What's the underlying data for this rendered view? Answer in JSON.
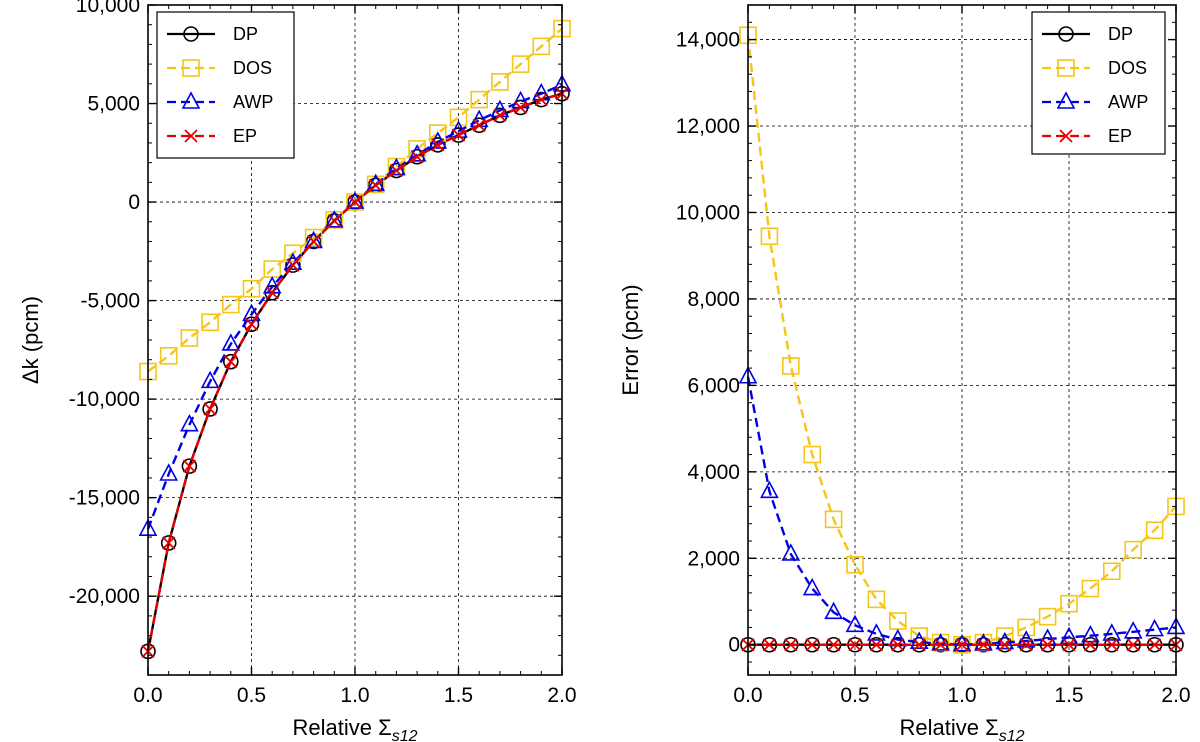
{
  "chart_data": [
    {
      "type": "line",
      "id": "left",
      "title": "",
      "xlabel_main": "Relative Σ",
      "xlabel_sub": "s12",
      "ylabel": "Δk (pcm)",
      "xlim": [
        0,
        2
      ],
      "ylim": [
        -24000,
        10000
      ],
      "xticks": [
        0,
        0.5,
        1,
        1.5,
        2
      ],
      "xtick_labels": [
        "0.0",
        "0.5",
        "1.0",
        "1.5",
        "2.0"
      ],
      "yticks": [
        -20000,
        -15000,
        -10000,
        -5000,
        0,
        5000,
        10000
      ],
      "ytick_labels": [
        "-20,000",
        "-15,000",
        "-10,000",
        "-5,000",
        "0",
        "5,000",
        "10,000"
      ],
      "legend_position": "top-left",
      "x": [
        0,
        0.1,
        0.2,
        0.3,
        0.4,
        0.5,
        0.6,
        0.7,
        0.8,
        0.9,
        1.0,
        1.1,
        1.2,
        1.3,
        1.4,
        1.5,
        1.6,
        1.7,
        1.8,
        1.9,
        2.0
      ],
      "series": [
        {
          "name": "DP",
          "color": "#000000",
          "marker": "circle",
          "dash": "solid",
          "values": [
            -22800,
            -17300,
            -13400,
            -10500,
            -8100,
            -6200,
            -4600,
            -3200,
            -2000,
            -950,
            0,
            850,
            1600,
            2300,
            2900,
            3400,
            3900,
            4400,
            4800,
            5200,
            5500
          ]
        },
        {
          "name": "DOS",
          "color": "#f5c518",
          "marker": "square",
          "dash": "dashed",
          "values": [
            -8600,
            -7800,
            -6900,
            -6100,
            -5200,
            -4400,
            -3400,
            -2600,
            -1800,
            -900,
            0,
            900,
            1800,
            2700,
            3500,
            4300,
            5200,
            6100,
            7000,
            7900,
            8800
          ]
        },
        {
          "name": "AWP",
          "color": "#0000e6",
          "marker": "triangle",
          "dash": "dashed",
          "values": [
            -16600,
            -13800,
            -11300,
            -9100,
            -7200,
            -5700,
            -4300,
            -3100,
            -2000,
            -950,
            0,
            900,
            1700,
            2400,
            3050,
            3600,
            4150,
            4650,
            5100,
            5500,
            5950
          ]
        },
        {
          "name": "EP",
          "color": "#e60000",
          "marker": "x",
          "dash": "dashed",
          "values": [
            -22800,
            -17300,
            -13400,
            -10500,
            -8100,
            -6200,
            -4600,
            -3200,
            -2000,
            -950,
            0,
            850,
            1600,
            2300,
            2900,
            3400,
            3900,
            4400,
            4800,
            5200,
            5500
          ]
        }
      ]
    },
    {
      "type": "line",
      "id": "right",
      "title": "",
      "xlabel_main": "Relative Σ",
      "xlabel_sub": "s12",
      "ylabel": "Error (pcm)",
      "xlim": [
        0,
        2
      ],
      "ylim": [
        -700,
        14800
      ],
      "xticks": [
        0,
        0.5,
        1,
        1.5,
        2
      ],
      "xtick_labels": [
        "0.0",
        "0.5",
        "1.0",
        "1.5",
        "2.0"
      ],
      "yticks": [
        0,
        2000,
        4000,
        6000,
        8000,
        10000,
        12000,
        14000
      ],
      "ytick_labels": [
        "0",
        "2,000",
        "4,000",
        "6,000",
        "8,000",
        "10,000",
        "12,000",
        "14,000"
      ],
      "legend_position": "top-right",
      "x": [
        0,
        0.1,
        0.2,
        0.3,
        0.4,
        0.5,
        0.6,
        0.7,
        0.8,
        0.9,
        1.0,
        1.1,
        1.2,
        1.3,
        1.4,
        1.5,
        1.6,
        1.7,
        1.8,
        1.9,
        2.0
      ],
      "series": [
        {
          "name": "DP",
          "color": "#000000",
          "marker": "circle",
          "dash": "solid",
          "values": [
            0,
            0,
            0,
            0,
            0,
            0,
            0,
            0,
            0,
            0,
            0,
            0,
            0,
            0,
            0,
            0,
            0,
            0,
            0,
            0,
            0
          ]
        },
        {
          "name": "DOS",
          "color": "#f5c518",
          "marker": "square",
          "dash": "dashed",
          "values": [
            14100,
            9450,
            6450,
            4400,
            2900,
            1850,
            1050,
            550,
            200,
            50,
            0,
            50,
            200,
            400,
            650,
            950,
            1300,
            1700,
            2200,
            2650,
            3200
          ]
        },
        {
          "name": "AWP",
          "color": "#0000e6",
          "marker": "triangle",
          "dash": "dashed",
          "values": [
            6200,
            3550,
            2100,
            1300,
            750,
            450,
            250,
            120,
            60,
            20,
            0,
            20,
            50,
            90,
            130,
            170,
            210,
            250,
            300,
            350,
            400
          ]
        },
        {
          "name": "EP",
          "color": "#e60000",
          "marker": "x",
          "dash": "dashed",
          "values": [
            0,
            0,
            0,
            0,
            0,
            0,
            0,
            0,
            0,
            0,
            0,
            0,
            0,
            0,
            0,
            0,
            0,
            0,
            0,
            0,
            0
          ]
        }
      ]
    }
  ]
}
